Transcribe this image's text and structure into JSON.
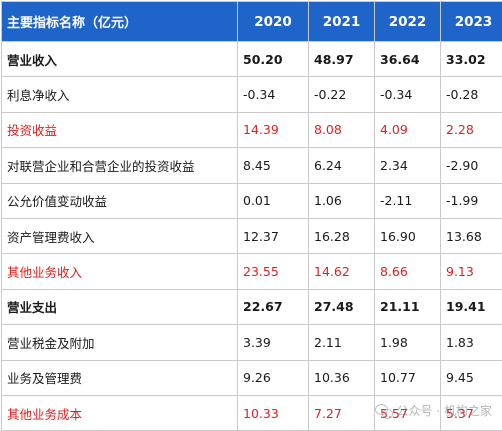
{
  "table": {
    "header": {
      "label": "主要指标名称（亿元）",
      "years": [
        "2020",
        "2021",
        "2022",
        "2023"
      ]
    },
    "rows": [
      {
        "label": "营业收入",
        "values": [
          "50.20",
          "48.97",
          "36.64",
          "33.02"
        ],
        "style": "bold"
      },
      {
        "label": "利息净收入",
        "values": [
          "-0.34",
          "-0.22",
          "-0.34",
          "-0.28"
        ],
        "style": "normal"
      },
      {
        "label": "投资收益",
        "values": [
          "14.39",
          "8.08",
          "4.09",
          "2.28"
        ],
        "style": "red"
      },
      {
        "label": "对联营企业和合营企业的投资收益",
        "values": [
          "8.45",
          "6.24",
          "2.34",
          "-2.90"
        ],
        "style": "normal"
      },
      {
        "label": "公允价值变动收益",
        "values": [
          "0.01",
          "1.06",
          "-2.11",
          "-1.99"
        ],
        "style": "normal"
      },
      {
        "label": "资产管理费收入",
        "values": [
          "12.37",
          "16.28",
          "16.90",
          "13.68"
        ],
        "style": "normal"
      },
      {
        "label": "其他业务收入",
        "values": [
          "23.55",
          "14.62",
          "8.66",
          "9.13"
        ],
        "style": "red"
      },
      {
        "label": "营业支出",
        "values": [
          "22.67",
          "27.48",
          "21.11",
          "19.41"
        ],
        "style": "bold"
      },
      {
        "label": "营业税金及附加",
        "values": [
          "3.39",
          "2.11",
          "1.98",
          "1.83"
        ],
        "style": "normal"
      },
      {
        "label": "业务及管理费",
        "values": [
          "9.26",
          "10.36",
          "10.77",
          "9.45"
        ],
        "style": "normal"
      },
      {
        "label": "其他业务成本",
        "values": [
          "10.33",
          "7.27",
          "5.57",
          "5.37"
        ],
        "style": "red"
      }
    ]
  },
  "watermark": {
    "text": "公众号 · 机构之家",
    "icon": "wechat-icon"
  },
  "colors": {
    "header_bg": "#1f64c8",
    "header_text": "#ffffff",
    "highlight_text": "#e02020",
    "border": "#c9c9c9"
  }
}
